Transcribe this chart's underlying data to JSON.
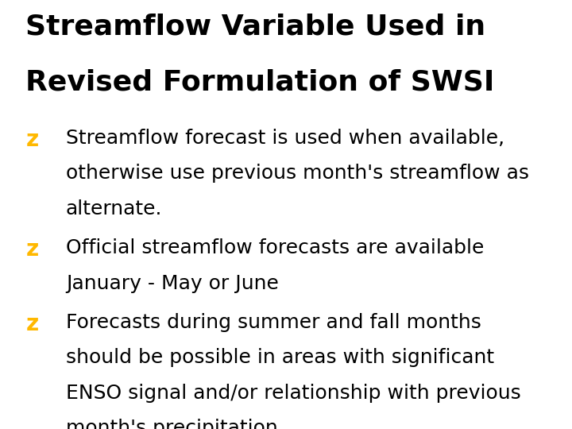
{
  "title_line1": "Streamflow Variable Used in",
  "title_line2": "Revised Formulation of SWSI",
  "title_fontsize": 26,
  "title_color": "#000000",
  "background_color": "#ffffff",
  "bullet_color": "#FFB800",
  "text_color": "#000000",
  "bullet_char": "z",
  "bullet_fontsize": 20,
  "text_fontsize": 18,
  "font_family": "Comic Sans MS",
  "bullets": [
    {
      "lines": [
        "Streamflow forecast is used when available,",
        "otherwise use previous month's streamflow as",
        "alternate."
      ]
    },
    {
      "lines": [
        "Official streamflow forecasts are available",
        "January - May or June"
      ]
    },
    {
      "lines": [
        "Forecasts during summer and fall months",
        "should be possible in areas with significant",
        "ENSO signal and/or relationship with previous",
        "month's precipitation"
      ]
    }
  ]
}
